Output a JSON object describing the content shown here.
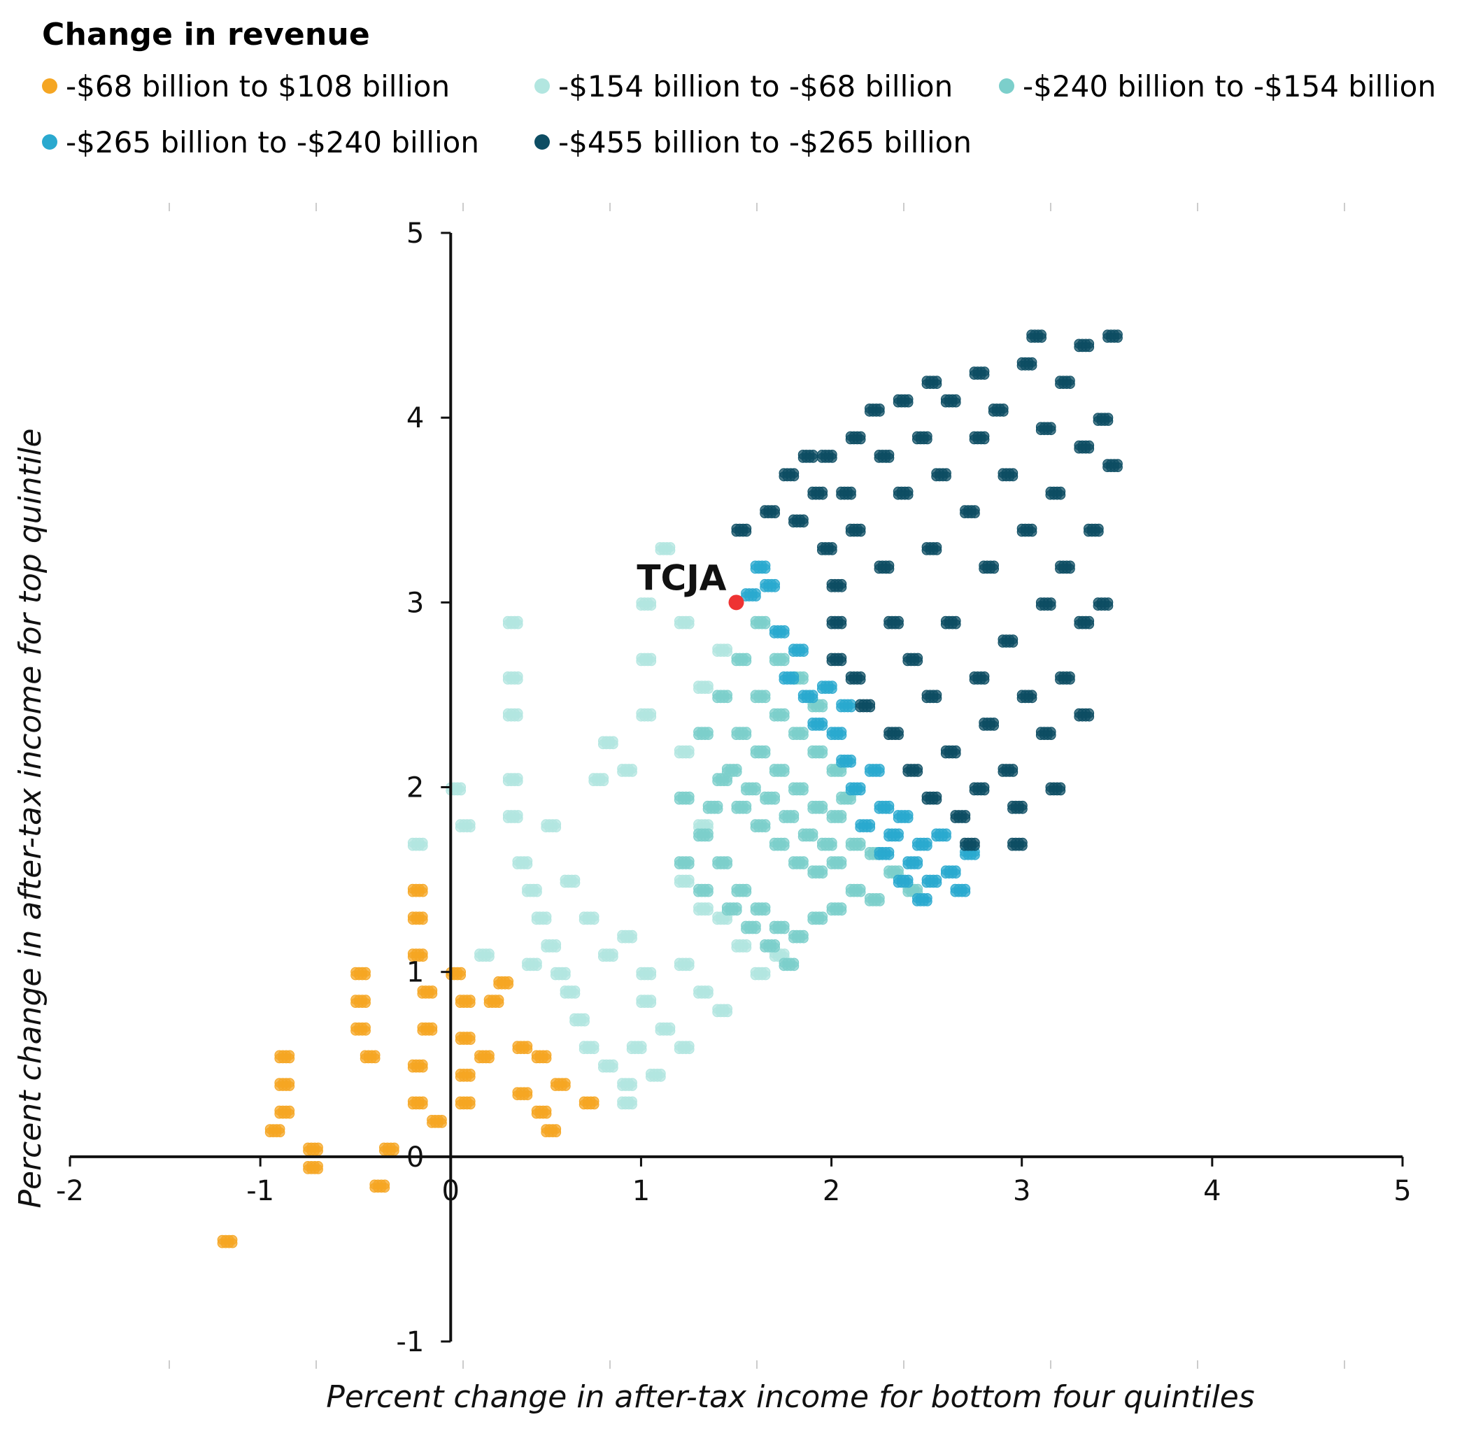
{
  "chart_data": {
    "type": "scatter",
    "title": "",
    "legend": {
      "title": "Change in revenue",
      "placement": "top-left",
      "entries": [
        {
          "label": "-$68 billion to $108 billion",
          "color": "#f5a623"
        },
        {
          "label": "-$154 billion to -$68 billion",
          "color": "#b2e6e0"
        },
        {
          "label": "-$240 billion to -$154 billion",
          "color": "#7ccfcb"
        },
        {
          "label": "-$265 billion to -$240 billion",
          "color": "#2aa9cf"
        },
        {
          "label": "-$455 billion to -$265 billion",
          "color": "#0d4d63"
        }
      ]
    },
    "xlabel": "Percent change in after-tax income for bottom four quintiles",
    "ylabel": "Percent change in after-tax income for top quintile",
    "xlim": [
      -2,
      5
    ],
    "ylim": [
      -1,
      5
    ],
    "x_ticks": [
      "-2",
      "-1",
      "0",
      "1",
      "2",
      "3",
      "4",
      "5"
    ],
    "y_ticks": [
      "-1",
      "0",
      "1",
      "2",
      "3",
      "4",
      "5"
    ],
    "grid": false,
    "annotation": {
      "label": "TCJA",
      "x": 1.5,
      "y": 3.0,
      "color": "#ee3333"
    },
    "series": [
      {
        "color": "#f5a623",
        "points": [
          [
            -1.2,
            -0.45
          ],
          [
            -0.9,
            0.55
          ],
          [
            -0.9,
            0.4
          ],
          [
            -0.9,
            0.25
          ],
          [
            -0.95,
            0.15
          ],
          [
            -0.75,
            0.05
          ],
          [
            -0.75,
            -0.05
          ],
          [
            -0.5,
            1.0
          ],
          [
            -0.5,
            0.85
          ],
          [
            -0.5,
            0.7
          ],
          [
            -0.45,
            0.55
          ],
          [
            -0.4,
            -0.15
          ],
          [
            -0.35,
            0.05
          ],
          [
            -0.2,
            1.45
          ],
          [
            -0.2,
            1.3
          ],
          [
            -0.2,
            1.1
          ],
          [
            -0.15,
            0.9
          ],
          [
            -0.15,
            0.7
          ],
          [
            -0.2,
            0.5
          ],
          [
            -0.2,
            0.3
          ],
          [
            -0.1,
            0.2
          ],
          [
            0.0,
            1.0
          ],
          [
            0.05,
            0.85
          ],
          [
            0.05,
            0.65
          ],
          [
            0.05,
            0.45
          ],
          [
            0.05,
            0.3
          ],
          [
            0.15,
            0.55
          ],
          [
            0.2,
            0.85
          ],
          [
            0.25,
            0.95
          ],
          [
            0.35,
            0.6
          ],
          [
            0.35,
            0.35
          ],
          [
            0.45,
            0.25
          ],
          [
            0.5,
            0.15
          ],
          [
            0.55,
            0.4
          ],
          [
            0.45,
            0.55
          ],
          [
            0.7,
            0.3
          ]
        ]
      },
      {
        "color": "#b2e6e0",
        "points": [
          [
            0.0,
            2.0
          ],
          [
            0.05,
            1.8
          ],
          [
            -0.2,
            1.7
          ],
          [
            0.3,
            2.9
          ],
          [
            0.3,
            2.6
          ],
          [
            0.3,
            2.4
          ],
          [
            0.3,
            2.05
          ],
          [
            0.3,
            1.85
          ],
          [
            0.35,
            1.6
          ],
          [
            0.4,
            1.45
          ],
          [
            0.45,
            1.3
          ],
          [
            0.5,
            1.15
          ],
          [
            0.55,
            1.0
          ],
          [
            0.6,
            0.9
          ],
          [
            0.65,
            0.75
          ],
          [
            0.7,
            0.6
          ],
          [
            0.8,
            0.5
          ],
          [
            0.9,
            0.4
          ],
          [
            0.9,
            0.3
          ],
          [
            0.8,
            1.1
          ],
          [
            0.9,
            1.2
          ],
          [
            1.0,
            1.0
          ],
          [
            1.0,
            0.85
          ],
          [
            1.1,
            0.7
          ],
          [
            1.2,
            0.6
          ],
          [
            0.5,
            1.8
          ],
          [
            0.6,
            1.5
          ],
          [
            0.7,
            1.3
          ],
          [
            0.75,
            2.05
          ],
          [
            0.8,
            2.25
          ],
          [
            0.9,
            2.1
          ],
          [
            1.0,
            2.4
          ],
          [
            1.0,
            2.7
          ],
          [
            1.0,
            3.0
          ],
          [
            1.1,
            3.3
          ],
          [
            1.2,
            2.9
          ],
          [
            1.2,
            2.2
          ],
          [
            1.3,
            1.8
          ],
          [
            1.2,
            1.5
          ],
          [
            1.4,
            1.3
          ],
          [
            1.5,
            1.15
          ],
          [
            1.6,
            1.0
          ],
          [
            1.7,
            1.1
          ],
          [
            1.2,
            1.05
          ],
          [
            1.3,
            0.9
          ],
          [
            1.4,
            0.8
          ],
          [
            1.3,
            2.55
          ],
          [
            1.4,
            2.75
          ],
          [
            1.3,
            1.35
          ],
          [
            0.15,
            1.1
          ],
          [
            0.4,
            1.05
          ],
          [
            0.95,
            0.6
          ],
          [
            1.05,
            0.45
          ]
        ]
      },
      {
        "color": "#7ccfcb",
        "points": [
          [
            1.2,
            1.95
          ],
          [
            1.3,
            1.75
          ],
          [
            1.4,
            1.6
          ],
          [
            1.5,
            1.45
          ],
          [
            1.6,
            1.35
          ],
          [
            1.7,
            1.25
          ],
          [
            1.8,
            1.2
          ],
          [
            1.9,
            1.3
          ],
          [
            2.0,
            1.35
          ],
          [
            2.1,
            1.45
          ],
          [
            2.2,
            1.4
          ],
          [
            1.4,
            2.05
          ],
          [
            1.5,
            1.9
          ],
          [
            1.6,
            1.8
          ],
          [
            1.7,
            1.7
          ],
          [
            1.8,
            1.6
          ],
          [
            1.9,
            1.55
          ],
          [
            2.0,
            1.6
          ],
          [
            2.1,
            1.7
          ],
          [
            2.2,
            1.65
          ],
          [
            1.5,
            2.3
          ],
          [
            1.6,
            2.2
          ],
          [
            1.7,
            2.1
          ],
          [
            1.8,
            2.0
          ],
          [
            1.9,
            1.9
          ],
          [
            2.0,
            1.85
          ],
          [
            1.6,
            2.5
          ],
          [
            1.7,
            2.4
          ],
          [
            1.8,
            2.3
          ],
          [
            1.9,
            2.2
          ],
          [
            1.7,
            2.7
          ],
          [
            1.8,
            2.6
          ],
          [
            1.9,
            2.45
          ],
          [
            2.0,
            2.1
          ],
          [
            1.4,
            2.5
          ],
          [
            1.3,
            2.3
          ],
          [
            1.5,
            2.7
          ],
          [
            1.6,
            2.9
          ],
          [
            1.2,
            1.6
          ],
          [
            1.3,
            1.45
          ],
          [
            1.45,
            1.35
          ],
          [
            1.55,
            1.25
          ],
          [
            1.65,
            1.15
          ],
          [
            1.75,
            1.05
          ],
          [
            2.3,
            1.55
          ],
          [
            2.4,
            1.45
          ],
          [
            1.35,
            1.9
          ],
          [
            1.45,
            2.1
          ],
          [
            1.55,
            2.0
          ],
          [
            1.65,
            1.95
          ],
          [
            1.75,
            1.85
          ],
          [
            1.85,
            1.75
          ],
          [
            1.95,
            1.7
          ],
          [
            2.05,
            1.95
          ]
        ]
      },
      {
        "color": "#2aa9cf",
        "points": [
          [
            1.6,
            3.2
          ],
          [
            1.55,
            3.05
          ],
          [
            1.7,
            2.85
          ],
          [
            1.75,
            2.6
          ],
          [
            1.85,
            2.5
          ],
          [
            1.9,
            2.35
          ],
          [
            2.0,
            2.3
          ],
          [
            2.05,
            2.15
          ],
          [
            2.1,
            2.0
          ],
          [
            2.2,
            2.1
          ],
          [
            2.25,
            1.9
          ],
          [
            2.3,
            1.75
          ],
          [
            2.35,
            1.85
          ],
          [
            2.4,
            1.6
          ],
          [
            2.45,
            1.7
          ],
          [
            2.5,
            1.5
          ],
          [
            2.55,
            1.75
          ],
          [
            2.6,
            1.55
          ],
          [
            2.15,
            1.8
          ],
          [
            2.25,
            1.65
          ],
          [
            2.35,
            1.5
          ],
          [
            1.95,
            2.55
          ],
          [
            2.05,
            2.45
          ],
          [
            1.8,
            2.75
          ],
          [
            1.65,
            3.1
          ],
          [
            2.45,
            1.4
          ],
          [
            2.65,
            1.45
          ],
          [
            2.7,
            1.65
          ]
        ]
      },
      {
        "color": "#0d4d63",
        "points": [
          [
            1.5,
            3.4
          ],
          [
            1.65,
            3.5
          ],
          [
            1.75,
            3.7
          ],
          [
            1.85,
            3.8
          ],
          [
            1.9,
            3.6
          ],
          [
            1.95,
            3.3
          ],
          [
            2.0,
            3.1
          ],
          [
            2.0,
            2.9
          ],
          [
            2.0,
            2.7
          ],
          [
            2.05,
            3.6
          ],
          [
            2.1,
            3.9
          ],
          [
            2.1,
            3.4
          ],
          [
            2.1,
            2.6
          ],
          [
            2.15,
            2.45
          ],
          [
            2.2,
            4.05
          ],
          [
            2.25,
            3.8
          ],
          [
            2.25,
            3.2
          ],
          [
            2.3,
            2.9
          ],
          [
            2.3,
            2.3
          ],
          [
            2.35,
            4.1
          ],
          [
            2.35,
            3.6
          ],
          [
            2.4,
            2.7
          ],
          [
            2.4,
            2.1
          ],
          [
            2.45,
            3.9
          ],
          [
            2.5,
            4.2
          ],
          [
            2.5,
            3.3
          ],
          [
            2.5,
            2.5
          ],
          [
            2.5,
            1.95
          ],
          [
            2.55,
            3.7
          ],
          [
            2.6,
            4.1
          ],
          [
            2.6,
            2.9
          ],
          [
            2.6,
            2.2
          ],
          [
            2.65,
            1.85
          ],
          [
            2.7,
            3.5
          ],
          [
            2.75,
            4.25
          ],
          [
            2.75,
            3.9
          ],
          [
            2.75,
            2.6
          ],
          [
            2.75,
            2.0
          ],
          [
            2.8,
            3.2
          ],
          [
            2.8,
            2.35
          ],
          [
            2.85,
            4.05
          ],
          [
            2.9,
            3.7
          ],
          [
            2.9,
            2.8
          ],
          [
            2.9,
            2.1
          ],
          [
            2.95,
            1.9
          ],
          [
            3.0,
            4.3
          ],
          [
            3.0,
            3.4
          ],
          [
            3.0,
            2.5
          ],
          [
            3.05,
            4.45
          ],
          [
            3.1,
            3.95
          ],
          [
            3.1,
            3.0
          ],
          [
            3.1,
            2.3
          ],
          [
            3.15,
            3.6
          ],
          [
            3.2,
            4.2
          ],
          [
            3.2,
            3.2
          ],
          [
            3.2,
            2.6
          ],
          [
            3.3,
            4.4
          ],
          [
            3.3,
            3.85
          ],
          [
            3.3,
            2.9
          ],
          [
            3.35,
            3.4
          ],
          [
            3.4,
            4.0
          ],
          [
            3.4,
            3.0
          ],
          [
            3.45,
            4.45
          ],
          [
            3.45,
            3.75
          ],
          [
            3.3,
            2.4
          ],
          [
            3.15,
            2.0
          ],
          [
            2.95,
            1.7
          ],
          [
            2.7,
            1.7
          ],
          [
            1.95,
            3.8
          ],
          [
            1.8,
            3.45
          ]
        ]
      }
    ]
  }
}
